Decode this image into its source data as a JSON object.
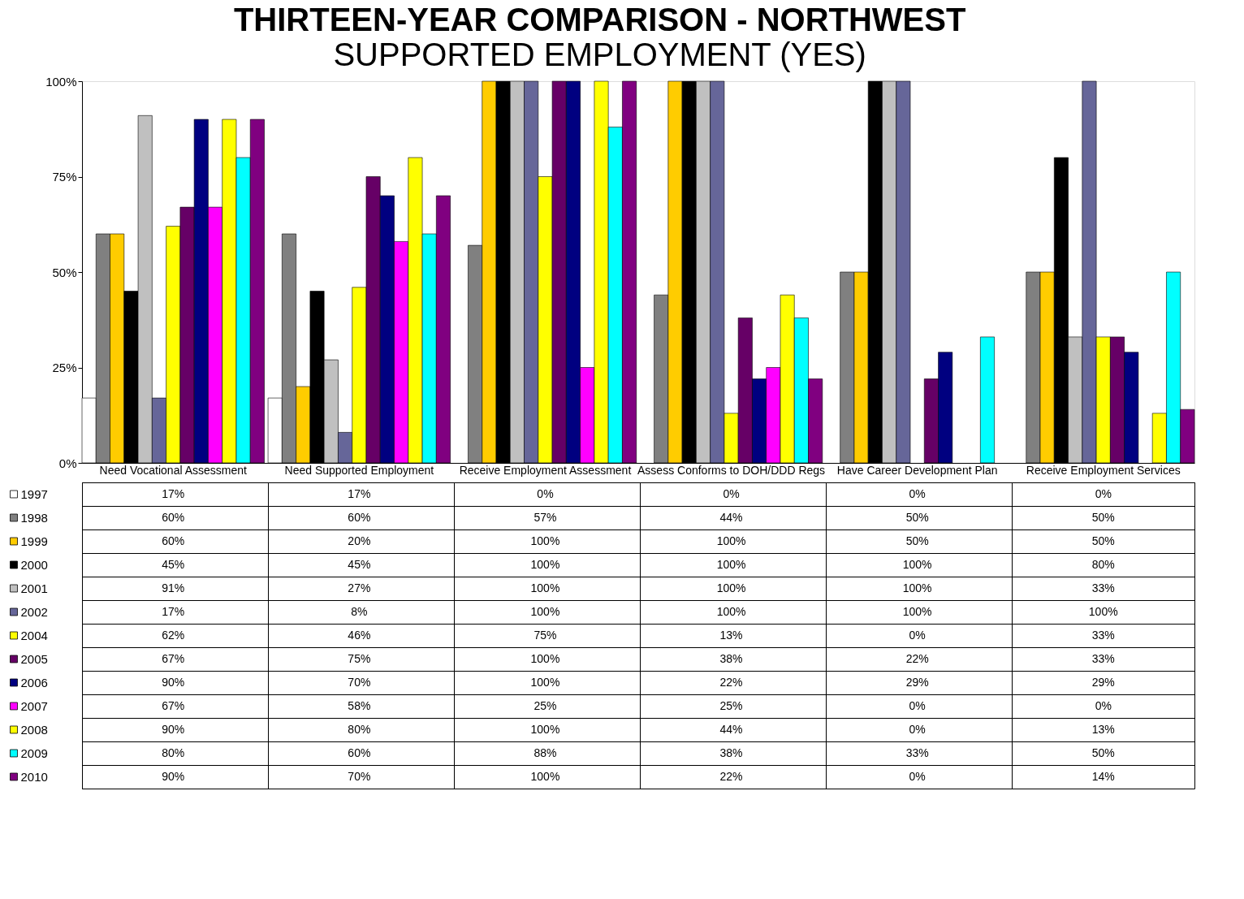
{
  "chart_data": {
    "type": "bar",
    "title": "THIRTEEN-YEAR COMPARISON - NORTHWEST",
    "subtitle": "SUPPORTED EMPLOYMENT (YES)",
    "categories": [
      "Need Vocational Assessment",
      "Need Supported Employment",
      "Receive Employment Assessment",
      "Assess Conforms to DOH/DDD Regs",
      "Have Career Development Plan",
      "Receive Employment Services"
    ],
    "ylim": [
      0,
      100
    ],
    "yticks": [
      {
        "value": 0,
        "label": "0%"
      },
      {
        "value": 25,
        "label": "25%"
      },
      {
        "value": 50,
        "label": "50%"
      },
      {
        "value": 75,
        "label": "75%"
      },
      {
        "value": 100,
        "label": "100%"
      }
    ],
    "grid": false,
    "legend": "bottom",
    "series": [
      {
        "name": "1997",
        "color": "#ffffff",
        "values": [
          17,
          17,
          0,
          0,
          0,
          0
        ],
        "value_labels": [
          "17%",
          "17%",
          "0%",
          "0%",
          "0%",
          "0%"
        ]
      },
      {
        "name": "1998",
        "color": "#808080",
        "values": [
          60,
          60,
          57,
          44,
          50,
          50
        ],
        "value_labels": [
          "60%",
          "60%",
          "57%",
          "44%",
          "50%",
          "50%"
        ]
      },
      {
        "name": "1999",
        "color": "#ffcc00",
        "values": [
          60,
          20,
          100,
          100,
          50,
          50
        ],
        "value_labels": [
          "60%",
          "20%",
          "100%",
          "100%",
          "50%",
          "50%"
        ]
      },
      {
        "name": "2000",
        "color": "#000000",
        "values": [
          45,
          45,
          100,
          100,
          100,
          80
        ],
        "value_labels": [
          "45%",
          "45%",
          "100%",
          "100%",
          "100%",
          "80%"
        ]
      },
      {
        "name": "2001",
        "color": "#c0c0c0",
        "values": [
          91,
          27,
          100,
          100,
          100,
          33
        ],
        "value_labels": [
          "91%",
          "27%",
          "100%",
          "100%",
          "100%",
          "33%"
        ]
      },
      {
        "name": "2002",
        "color": "#666699",
        "values": [
          17,
          8,
          100,
          100,
          100,
          100
        ],
        "value_labels": [
          "17%",
          "8%",
          "100%",
          "100%",
          "100%",
          "100%"
        ]
      },
      {
        "name": "2004",
        "color": "#ffff00",
        "values": [
          62,
          46,
          75,
          13,
          0,
          33
        ],
        "value_labels": [
          "62%",
          "46%",
          "75%",
          "13%",
          "0%",
          "33%"
        ]
      },
      {
        "name": "2005",
        "color": "#660066",
        "values": [
          67,
          75,
          100,
          38,
          22,
          33
        ],
        "value_labels": [
          "67%",
          "75%",
          "100%",
          "38%",
          "22%",
          "33%"
        ]
      },
      {
        "name": "2006",
        "color": "#000080",
        "values": [
          90,
          70,
          100,
          22,
          29,
          29
        ],
        "value_labels": [
          "90%",
          "70%",
          "100%",
          "22%",
          "29%",
          "29%"
        ]
      },
      {
        "name": "2007",
        "color": "#ff00ff",
        "values": [
          67,
          58,
          25,
          25,
          0,
          0
        ],
        "value_labels": [
          "67%",
          "58%",
          "25%",
          "25%",
          "0%",
          "0%"
        ]
      },
      {
        "name": "2008",
        "color": "#ffff00",
        "values": [
          90,
          80,
          100,
          44,
          0,
          13
        ],
        "value_labels": [
          "90%",
          "80%",
          "100%",
          "44%",
          "0%",
          "13%"
        ]
      },
      {
        "name": "2009",
        "color": "#00ffff",
        "values": [
          80,
          60,
          88,
          38,
          33,
          50
        ],
        "value_labels": [
          "80%",
          "60%",
          "88%",
          "38%",
          "33%",
          "50%"
        ]
      },
      {
        "name": "2010",
        "color": "#800080",
        "values": [
          90,
          70,
          100,
          22,
          0,
          14
        ],
        "value_labels": [
          "90%",
          "70%",
          "100%",
          "22%",
          "0%",
          "14%"
        ]
      }
    ]
  }
}
